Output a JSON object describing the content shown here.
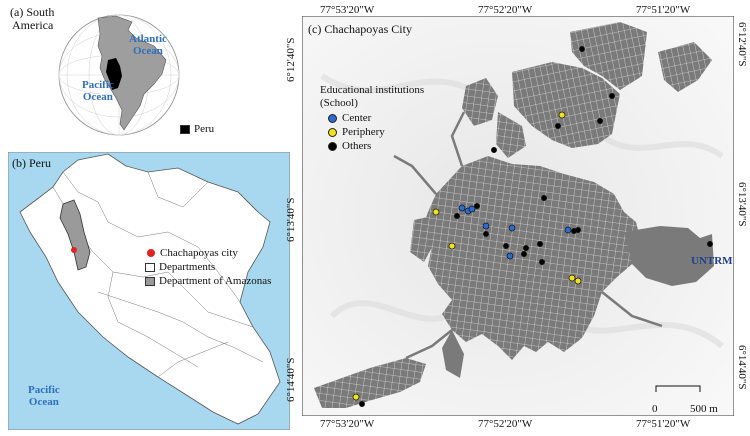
{
  "colors": {
    "ocean": "#a8d8f0",
    "land": "#ffffff",
    "amazonas": "#9a9a9a",
    "peru_fill": "#000000",
    "city_fill": "#777777",
    "ocean_label": "#2f6fbf",
    "center_dot": "#2e6bd1",
    "periphery_dot": "#f2e21c",
    "other_dot": "#000000",
    "chachapoyas_dot": "#e32222"
  },
  "panel_a": {
    "label_line1": "(a) South",
    "label_line2": "America",
    "atlantic_line1": "Atlantic",
    "atlantic_line2": "Ocean",
    "pacific_line1": "Pacific",
    "pacific_line2": "Ocean",
    "legend_peru": "Peru"
  },
  "panel_b": {
    "label": "(b) Peru",
    "ocean_line1": "Pacific",
    "ocean_line2": "Ocean",
    "legend": {
      "city": "Chachapoyas city",
      "departments": "Departments",
      "amazonas": "Department of Amazonas"
    }
  },
  "panel_c": {
    "label": "(c) Chachapoyas City",
    "legend_title_line1": "Educational institutions",
    "legend_title_line2": "(School)",
    "legend": {
      "center": "Center",
      "periphery": "Periphery",
      "others": "Others"
    },
    "untrm": "UNTRM",
    "scale_start": "0",
    "scale_end": "500 m",
    "coords_top": [
      "77°53'20\"W",
      "77°52'20\"W",
      "77°51'20\"W"
    ],
    "coords_bottom": [
      "77°53'20\"W",
      "77°52'20\"W",
      "77°51'20\"W"
    ],
    "coords_left": [
      "6°12'40\"S",
      "6°13'40\"S",
      "6°14'40\"S"
    ],
    "coords_right": [
      "6°12'40\"S",
      "6°13'40\"S",
      "6°14'40\"S"
    ]
  }
}
